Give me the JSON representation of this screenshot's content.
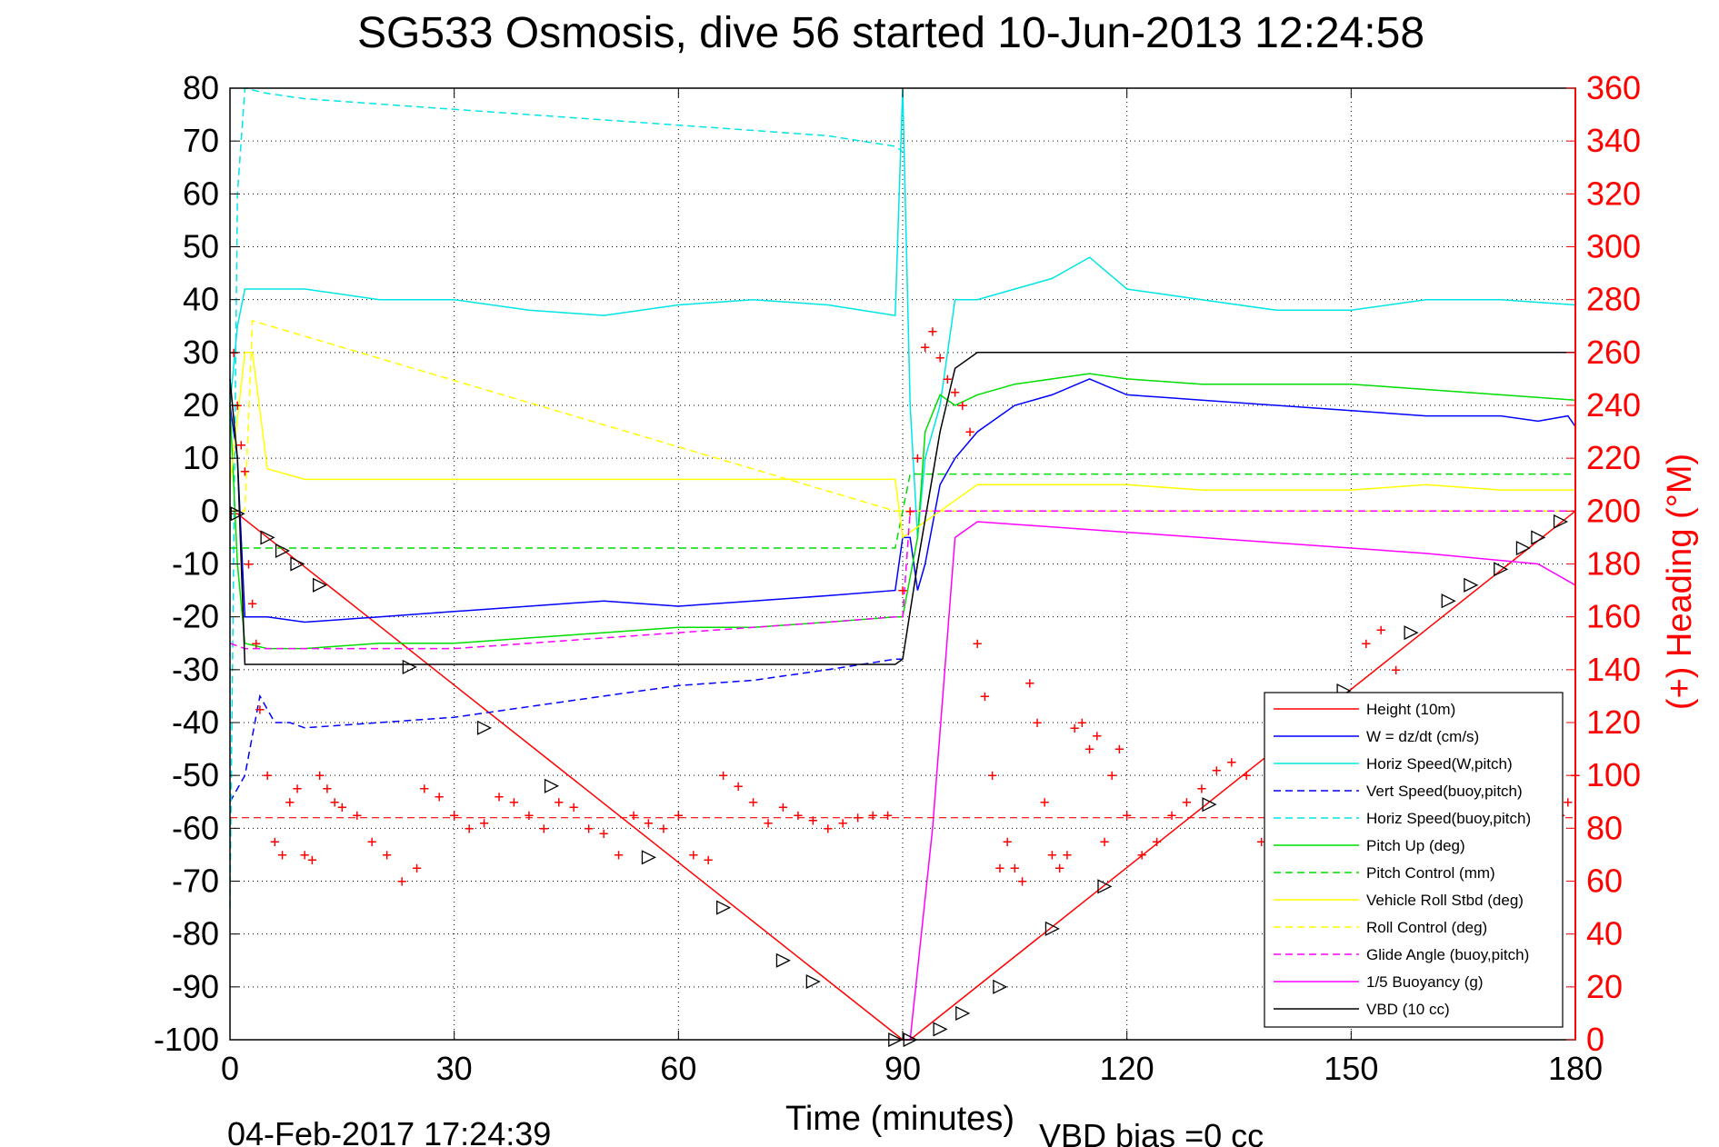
{
  "chart_data": {
    "type": "line",
    "title": "SG533 Osmosis, dive 56 started 10-Jun-2013 12:24:58",
    "xlabel": "Time (minutes)",
    "ylabel_left": "",
    "ylabel_right": "(+) Heading (°M)",
    "footer_left": "04-Feb-2017 17:24:39",
    "footer_right": "VBD bias =0 cc",
    "xlim": [
      0,
      180
    ],
    "ylim_left": [
      -100,
      80
    ],
    "ylim_right": [
      0,
      360
    ],
    "xticks": [
      "0",
      "30",
      "60",
      "90",
      "120",
      "150",
      "180"
    ],
    "yticks_left": [
      "80",
      "70",
      "60",
      "50",
      "40",
      "30",
      "20",
      "10",
      "0",
      "-10",
      "-20",
      "-30",
      "-40",
      "-50",
      "-60",
      "-70",
      "-80",
      "-90",
      "-100"
    ],
    "yticks_right": [
      "360",
      "340",
      "320",
      "300",
      "280",
      "260",
      "240",
      "220",
      "200",
      "180",
      "160",
      "140",
      "120",
      "100",
      "80",
      "60",
      "40",
      "20",
      "0"
    ],
    "grid": true,
    "legend_position": "bottom-right",
    "legend": [
      {
        "name": "Height (10m)",
        "color": "#ff0000",
        "dash": "solid"
      },
      {
        "name": "W = dz/dt (cm/s)",
        "color": "#0000ff",
        "dash": "solid"
      },
      {
        "name": "Horiz Speed(W,pitch)",
        "color": "#00e5e5",
        "dash": "solid"
      },
      {
        "name": "Vert Speed(buoy,pitch)",
        "color": "#0000ff",
        "dash": "dashed"
      },
      {
        "name": "Horiz Speed(buoy,pitch)",
        "color": "#00e5e5",
        "dash": "dashed"
      },
      {
        "name": "Pitch Up (deg)",
        "color": "#00dd00",
        "dash": "solid"
      },
      {
        "name": "Pitch Control (mm)",
        "color": "#00dd00",
        "dash": "dashed"
      },
      {
        "name": "Vehicle Roll Stbd (deg)",
        "color": "#ffff00",
        "dash": "solid"
      },
      {
        "name": "Roll Control (deg)",
        "color": "#ffff00",
        "dash": "dashed"
      },
      {
        "name": "Glide Angle (buoy,pitch)",
        "color": "#ff00ff",
        "dash": "dashed"
      },
      {
        "name": "1/5 Buoyancy (g)",
        "color": "#ff00ff",
        "dash": "solid"
      },
      {
        "name": "VBD (10 cc)",
        "color": "#000000",
        "dash": "solid"
      }
    ],
    "series": [
      {
        "name": "Height (10m)",
        "x": [
          0,
          1,
          90,
          91,
          180
        ],
        "y": [
          -0.5,
          -0.5,
          -100,
          -100,
          0
        ]
      },
      {
        "name": "W = dz/dt (cm/s)",
        "x": [
          0,
          1,
          2,
          3,
          5,
          10,
          20,
          30,
          40,
          50,
          60,
          70,
          80,
          89,
          90,
          91,
          92,
          93,
          95,
          97,
          100,
          105,
          110,
          115,
          120,
          130,
          140,
          150,
          160,
          170,
          175,
          179,
          180
        ],
        "y": [
          20,
          10,
          -20,
          -20,
          -20,
          -21,
          -20,
          -19,
          -18,
          -17,
          -18,
          -17,
          -16,
          -15,
          -5,
          -5,
          -15,
          -10,
          5,
          10,
          15,
          20,
          22,
          25,
          22,
          21,
          20,
          19,
          18,
          18,
          17,
          18,
          16
        ]
      },
      {
        "name": "Horiz Speed(W,pitch)",
        "x": [
          0,
          1,
          2,
          5,
          10,
          20,
          30,
          40,
          50,
          60,
          70,
          80,
          89,
          90,
          91,
          92,
          93,
          95,
          97,
          100,
          105,
          110,
          115,
          120,
          130,
          140,
          150,
          160,
          170,
          180
        ],
        "y": [
          20,
          35,
          42,
          42,
          42,
          40,
          40,
          38,
          37,
          39,
          40,
          39,
          37,
          80,
          20,
          -5,
          10,
          20,
          40,
          40,
          42,
          44,
          48,
          42,
          40,
          38,
          38,
          40,
          40,
          39
        ]
      },
      {
        "name": "Vert Speed(buoy,pitch)",
        "x": [
          0,
          2,
          4,
          6,
          8,
          10,
          20,
          30,
          40,
          50,
          60,
          70,
          80,
          89,
          90
        ],
        "y": [
          -55,
          -50,
          -35,
          -40,
          -40,
          -41,
          -40,
          -39,
          -37,
          -35,
          -33,
          -32,
          -30,
          -28,
          -28
        ]
      },
      {
        "name": "Horiz Speed(buoy,pitch)",
        "x": [
          0,
          1,
          2,
          5,
          10,
          20,
          30,
          40,
          50,
          60,
          70,
          80,
          89,
          90
        ],
        "y": [
          -75,
          60,
          80,
          79,
          78,
          77,
          76,
          75,
          74,
          73,
          72,
          71,
          69,
          68
        ]
      },
      {
        "name": "Pitch Up (deg)",
        "x": [
          0,
          1,
          2,
          5,
          10,
          20,
          30,
          40,
          50,
          60,
          70,
          80,
          89,
          90,
          92,
          93,
          95,
          97,
          100,
          105,
          110,
          115,
          120,
          130,
          140,
          150,
          160,
          170,
          180
        ],
        "y": [
          20,
          -10,
          -25,
          -26,
          -26,
          -25,
          -25,
          -24,
          -23,
          -22,
          -22,
          -21,
          -20,
          -20,
          -5,
          15,
          22,
          20,
          22,
          24,
          25,
          26,
          25,
          24,
          24,
          24,
          23,
          22,
          21
        ]
      },
      {
        "name": "Pitch Control (mm)",
        "x": [
          0,
          2,
          89,
          91,
          180
        ],
        "y": [
          -7,
          -7,
          -7,
          7,
          7
        ]
      },
      {
        "name": "Vehicle Roll Stbd (deg)",
        "x": [
          0,
          2,
          3,
          5,
          10,
          20,
          30,
          40,
          50,
          60,
          70,
          80,
          89,
          90,
          95,
          100,
          110,
          120,
          130,
          140,
          150,
          160,
          170,
          180
        ],
        "y": [
          5,
          30,
          30,
          8,
          6,
          6,
          6,
          6,
          6,
          6,
          6,
          6,
          6,
          -5,
          0,
          5,
          5,
          5,
          4,
          4,
          4,
          5,
          4,
          4
        ]
      },
      {
        "name": "Roll Control (deg)",
        "x": [
          0,
          2,
          3,
          89,
          91,
          180
        ],
        "y": [
          0,
          0,
          36,
          0,
          0,
          0
        ]
      },
      {
        "name": "Glide Angle (buoy,pitch)",
        "x": [
          0,
          2,
          5,
          10,
          20,
          30,
          40,
          50,
          60,
          70,
          80,
          89,
          90,
          91,
          180
        ],
        "y": [
          -25,
          -26,
          -26,
          -26,
          -26,
          -26,
          -25,
          -24,
          -23,
          -22,
          -21,
          -20,
          -20,
          0,
          0
        ]
      },
      {
        "name": "1/5 Buoyancy (g)",
        "x": [
          90,
          91,
          94,
          97,
          100,
          120,
          140,
          160,
          175,
          180
        ],
        "y": [
          -100,
          -100,
          -60,
          -5,
          -2,
          -4,
          -6,
          -8,
          -10,
          -14
        ]
      },
      {
        "name": "VBD (10 cc)",
        "x": [
          0,
          1,
          2,
          89,
          90,
          92,
          95,
          97,
          100,
          180
        ],
        "y": [
          25,
          10,
          -29,
          -29,
          -28,
          -10,
          15,
          27,
          30,
          30
        ]
      }
    ],
    "heading_points": {
      "name": "(+) Heading (°M)",
      "color": "#ff0000",
      "marker": "+",
      "axis": "right",
      "x": [
        0.5,
        1,
        1.5,
        2,
        2.5,
        3,
        3.5,
        4,
        5,
        6,
        7,
        8,
        9,
        10,
        11,
        12,
        13,
        14,
        15,
        17,
        19,
        21,
        23,
        25,
        26,
        28,
        30,
        32,
        34,
        36,
        38,
        40,
        42,
        44,
        46,
        48,
        50,
        52,
        54,
        56,
        58,
        60,
        62,
        64,
        66,
        68,
        70,
        72,
        74,
        76,
        78,
        80,
        82,
        84,
        86,
        88,
        90,
        91,
        92,
        93,
        94,
        95,
        96,
        97,
        98,
        99,
        100,
        101,
        102,
        103,
        104,
        105,
        106,
        107,
        108,
        109,
        110,
        111,
        112,
        113,
        114,
        115,
        116,
        117,
        118,
        119,
        120,
        122,
        124,
        126,
        128,
        130,
        132,
        134,
        136,
        138,
        140,
        142,
        144,
        146,
        148,
        150,
        152,
        154,
        156,
        158,
        160,
        162,
        164,
        166,
        168,
        170,
        172,
        174,
        176,
        178,
        179,
        180
      ],
      "y": [
        260,
        240,
        225,
        215,
        180,
        165,
        150,
        125,
        100,
        75,
        70,
        90,
        95,
        70,
        68,
        100,
        95,
        90,
        88,
        85,
        75,
        70,
        60,
        65,
        95,
        92,
        85,
        80,
        82,
        92,
        90,
        85,
        80,
        90,
        88,
        80,
        78,
        70,
        85,
        82,
        80,
        85,
        70,
        68,
        100,
        96,
        90,
        82,
        88,
        85,
        83,
        80,
        82,
        84,
        85,
        85,
        170,
        200,
        220,
        262,
        268,
        258,
        250,
        245,
        240,
        230,
        150,
        130,
        100,
        65,
        75,
        65,
        60,
        135,
        120,
        90,
        70,
        65,
        70,
        118,
        120,
        110,
        115,
        75,
        100,
        110,
        85,
        70,
        75,
        85,
        90,
        95,
        102,
        105,
        100,
        75,
        85,
        90,
        80,
        95,
        110,
        130,
        150,
        155,
        140,
        130,
        120,
        110,
        100,
        95,
        90,
        85,
        80,
        78,
        82,
        85,
        90,
        100
      ]
    },
    "waypoint_markers": {
      "marker": "triangle",
      "color": "#000000",
      "x": [
        1,
        5,
        7,
        9,
        12,
        24,
        34,
        43,
        56,
        66,
        74,
        78,
        89,
        91,
        95,
        98,
        103,
        110,
        117,
        131,
        149,
        158,
        163,
        166,
        170,
        173,
        175,
        178
      ],
      "y": [
        -0.5,
        -5,
        -7.5,
        -10,
        -14,
        -29.5,
        -41,
        -52,
        -65.5,
        -75,
        -85,
        -89,
        -100,
        -100,
        -98,
        -95,
        -90,
        -79,
        -71,
        -55.5,
        -34,
        -23,
        -17,
        -14,
        -11,
        -7,
        -5,
        -2
      ]
    }
  }
}
